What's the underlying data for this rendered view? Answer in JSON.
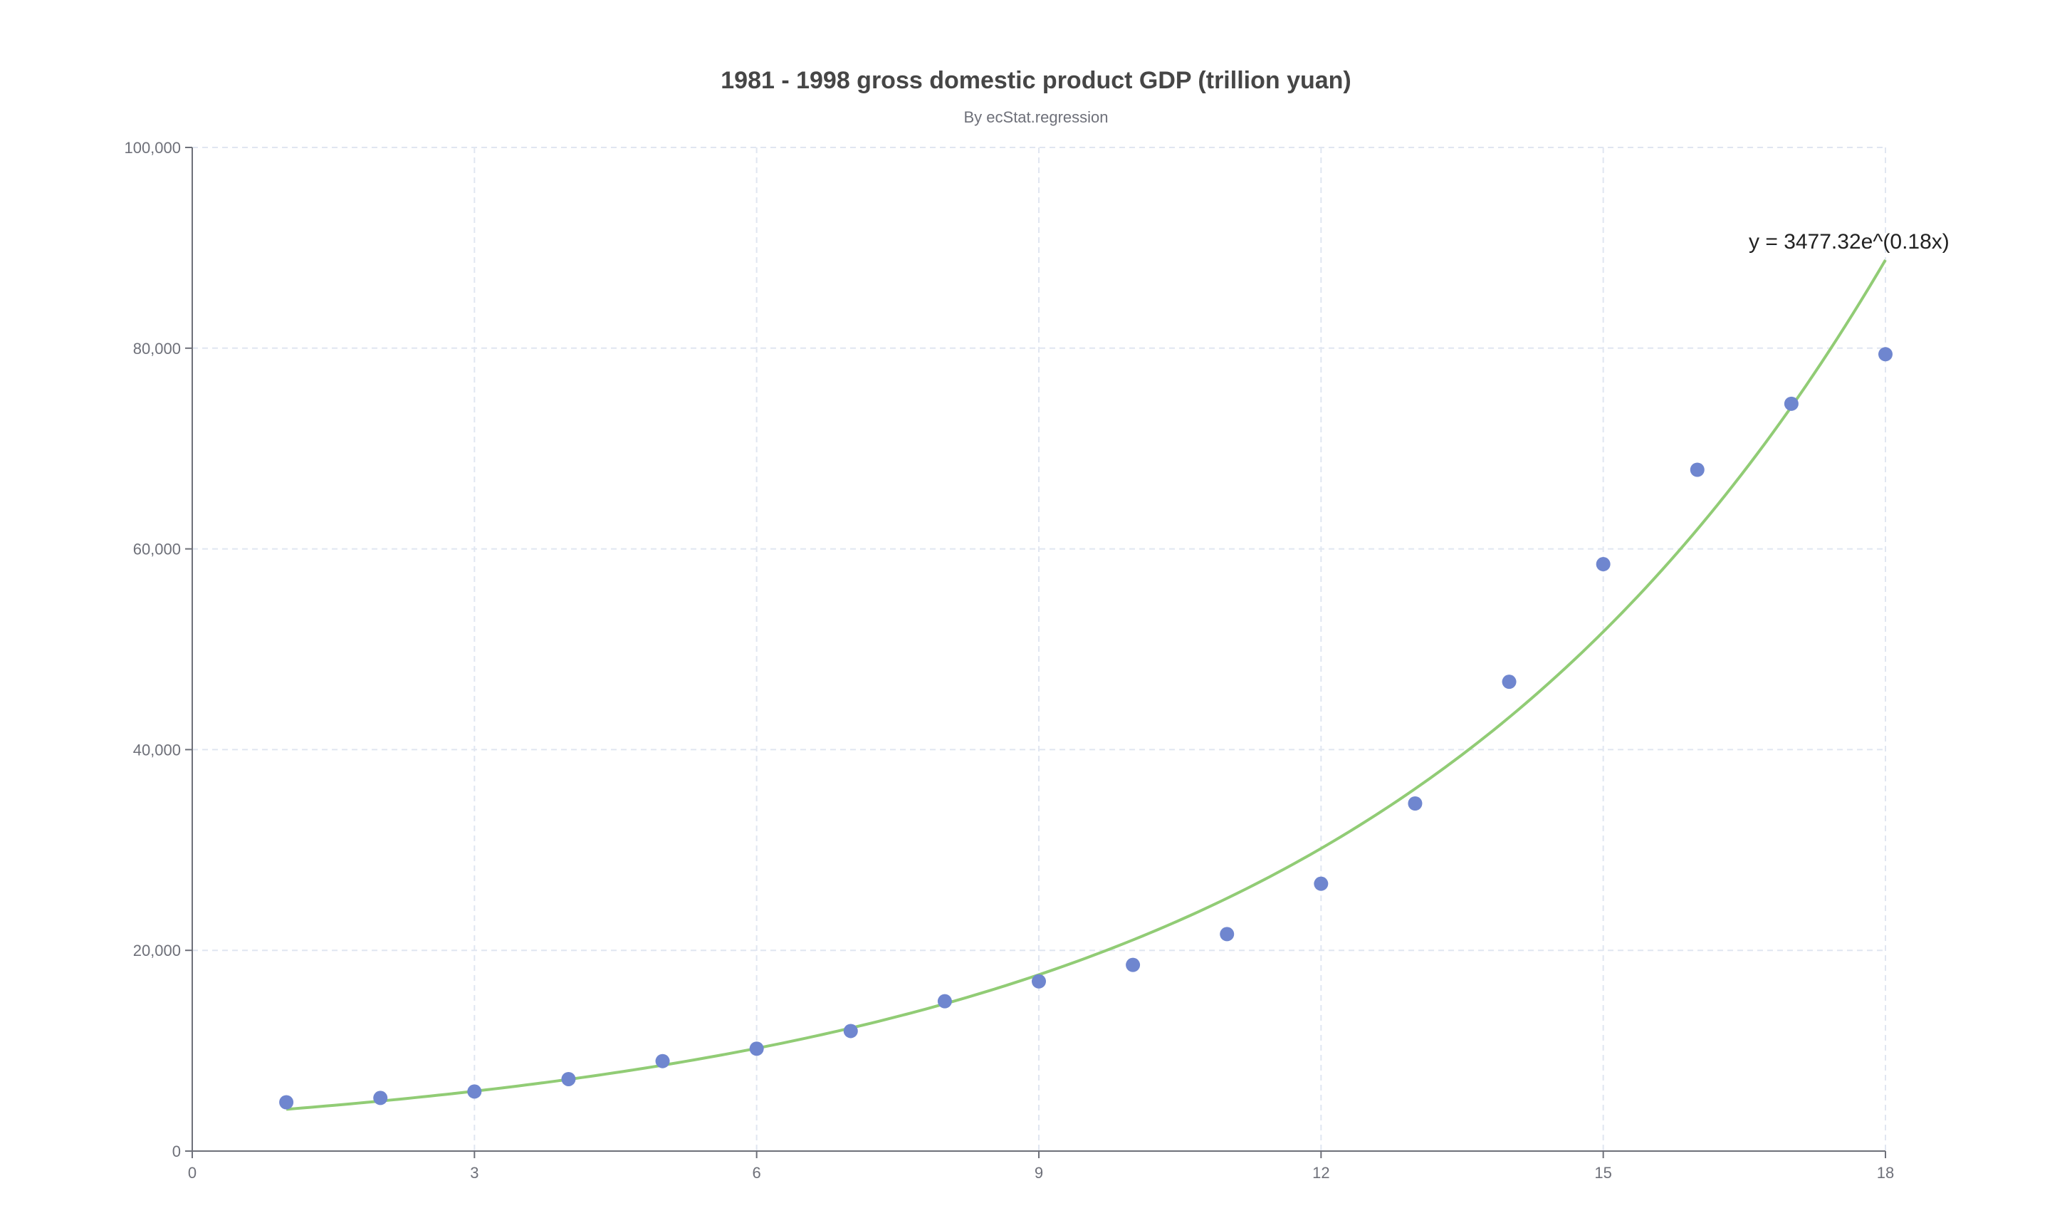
{
  "chart_data": {
    "type": "scatter",
    "title": "1981 - 1998 gross domestic product GDP (trillion yuan)",
    "subtitle": "By ecStat.regression",
    "xlabel": "",
    "ylabel": "",
    "xlim": [
      0,
      18
    ],
    "ylim": [
      0,
      100000
    ],
    "x_ticks": [
      0,
      3,
      6,
      9,
      12,
      15,
      18
    ],
    "x_tick_labels": [
      "0",
      "3",
      "6",
      "9",
      "12",
      "15",
      "18"
    ],
    "y_ticks": [
      0,
      20000,
      40000,
      60000,
      80000,
      100000
    ],
    "y_tick_labels": [
      "0",
      "20,000",
      "40,000",
      "60,000",
      "80,000",
      "100,000"
    ],
    "grid": true,
    "series": [
      {
        "type": "scatter",
        "color": "#6f86cf",
        "points": [
          [
            1,
            4862
          ],
          [
            2,
            5294
          ],
          [
            3,
            5934
          ],
          [
            4,
            7171
          ],
          [
            5,
            8964
          ],
          [
            6,
            10202
          ],
          [
            7,
            11963
          ],
          [
            8,
            14928
          ],
          [
            9,
            16909
          ],
          [
            10,
            18548
          ],
          [
            11,
            21618
          ],
          [
            12,
            26638
          ],
          [
            13,
            34634
          ],
          [
            14,
            46759
          ],
          [
            15,
            58478
          ],
          [
            16,
            67885
          ],
          [
            17,
            74463
          ],
          [
            18,
            79396
          ]
        ]
      },
      {
        "type": "line",
        "color": "#91cc75",
        "regression": "exponential",
        "coefficient": 3477.32,
        "rate": 0.18,
        "x_start": 1,
        "x_end": 18,
        "equation_label": "y = 3477.32e^(0.18x)"
      }
    ]
  }
}
